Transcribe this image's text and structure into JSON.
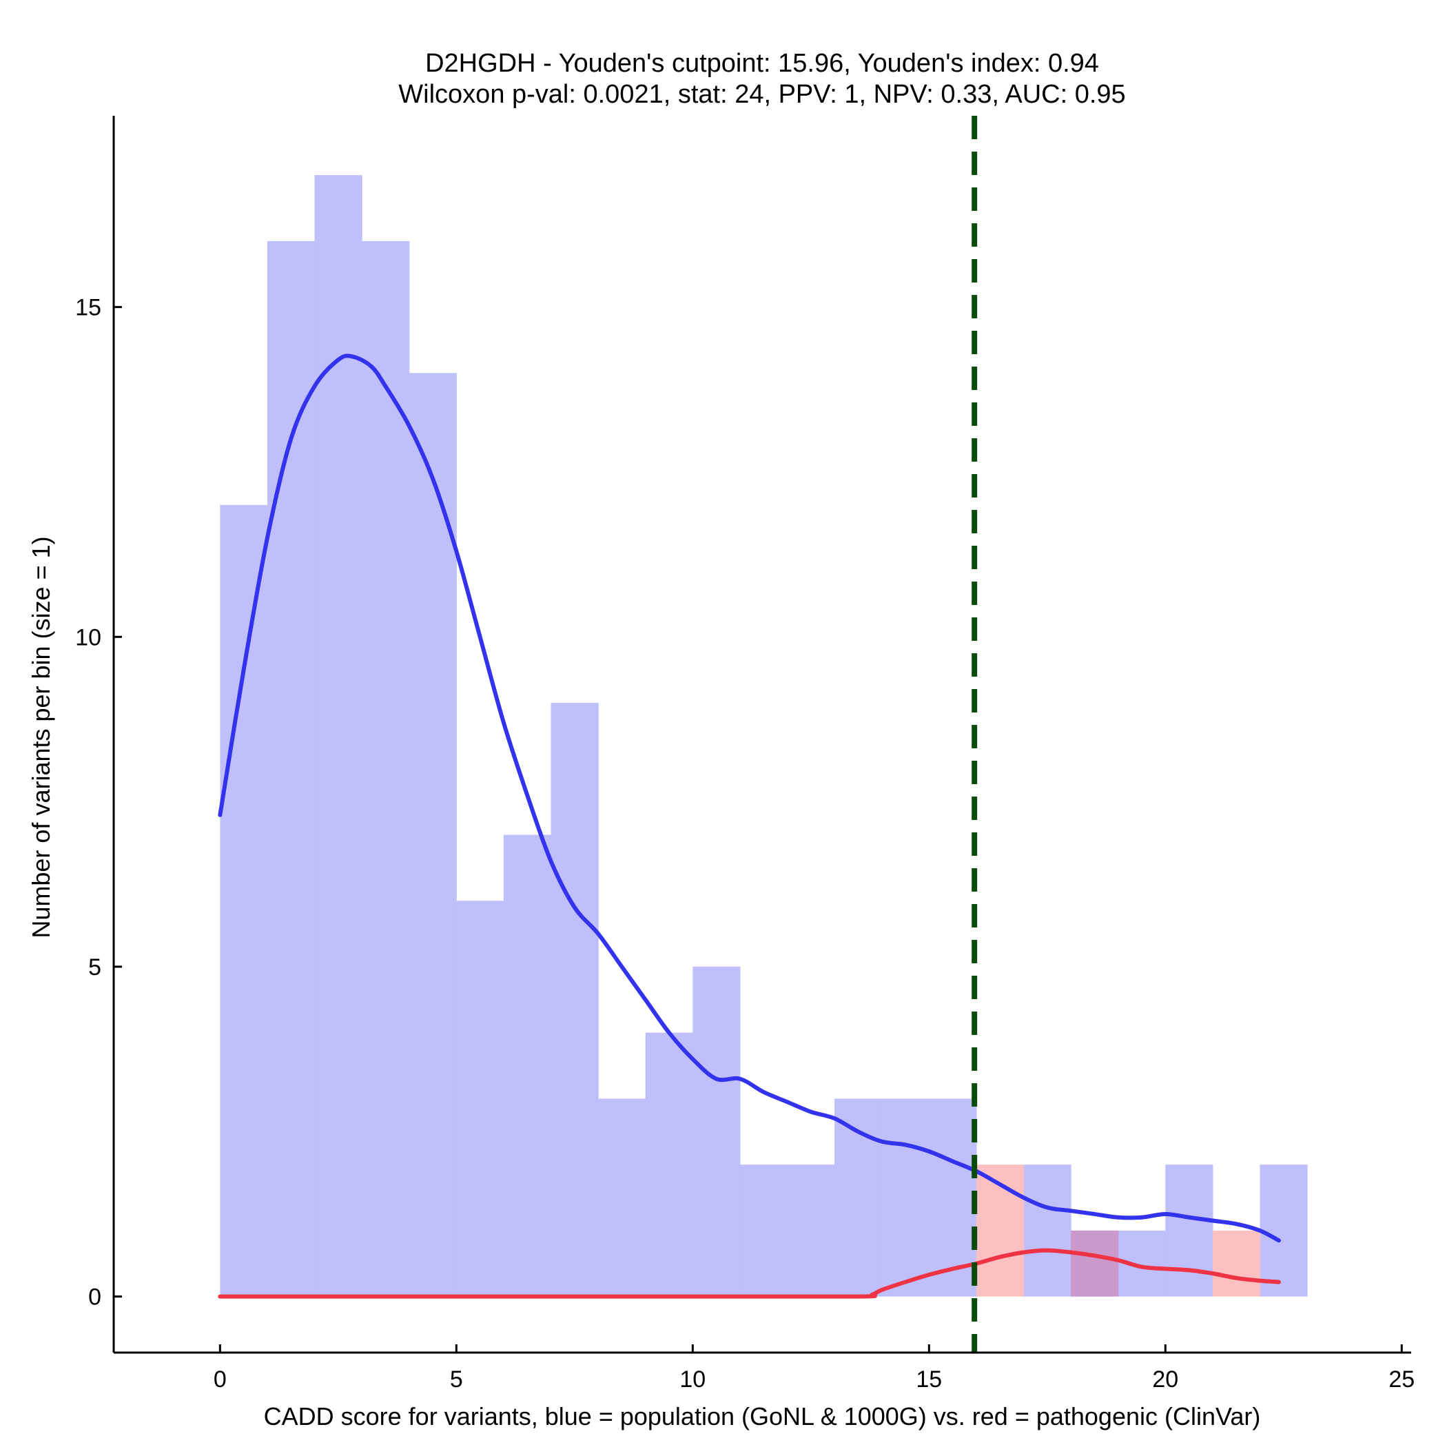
{
  "chart_data": {
    "type": "histogram",
    "title_line1": "D2HGDH - Youden's cutpoint: 15.96, Youden's index: 0.94",
    "title_line2": "Wilcoxon p-val: 0.0021, stat: 24, PPV: 1, NPV: 0.33, AUC: 0.95",
    "xlabel": "CADD score for variants, blue = population (GoNL & 1000G) vs. red = pathogenic (ClinVar)",
    "ylabel": "Number of variants per bin (size = 1)",
    "xlim": [
      -2.25,
      25.2
    ],
    "ylim": [
      -0.85,
      17.9
    ],
    "x_ticks": [
      0,
      5,
      10,
      15,
      20,
      25
    ],
    "x_tick_labels": [
      "0",
      "5",
      "10",
      "15",
      "20",
      "25"
    ],
    "y_ticks": [
      0,
      5,
      10,
      15
    ],
    "y_tick_labels": [
      "0",
      "5",
      "10",
      "15"
    ],
    "bin_size": 1,
    "cutpoint": 15.96,
    "colors": {
      "population_fill": "#bfbffc",
      "pathogenic_fill": "#fcc0c0",
      "overlap_fill": "#cc99cc",
      "population_line": "#3333ee",
      "pathogenic_line": "#ee3344",
      "cutpoint_line": "#0a4a0a"
    },
    "series": [
      {
        "name": "population (GoNL & 1000G)",
        "bin_starts": [
          0,
          1,
          2,
          3,
          4,
          5,
          6,
          7,
          8,
          9,
          10,
          11,
          12,
          13,
          14,
          15,
          16,
          17,
          18,
          19,
          20,
          21,
          22
        ],
        "values": [
          12,
          16,
          17,
          16,
          14,
          6,
          7,
          9,
          3,
          4,
          5,
          2,
          2,
          3,
          3,
          3,
          0,
          2,
          1,
          1,
          2,
          0,
          2
        ]
      },
      {
        "name": "pathogenic (ClinVar)",
        "bin_starts": [
          16,
          18,
          21
        ],
        "values": [
          2,
          1,
          1
        ]
      }
    ],
    "density_lines": [
      {
        "name": "population",
        "x": [
          0,
          0.5,
          1,
          1.5,
          2,
          2.5,
          2.8,
          3.2,
          3.5,
          4,
          4.5,
          5,
          5.5,
          6,
          6.5,
          7,
          7.5,
          8,
          8.5,
          9,
          9.5,
          10,
          10.5,
          11,
          11.5,
          12,
          12.5,
          13,
          13.5,
          14,
          14.5,
          15,
          15.5,
          16,
          16.5,
          17,
          17.5,
          18,
          18.5,
          19,
          19.5,
          20,
          20.5,
          21,
          21.5,
          22,
          22.4
        ],
        "y": [
          7.3,
          9.5,
          11.5,
          13.0,
          13.8,
          14.2,
          14.25,
          14.1,
          13.8,
          13.2,
          12.4,
          11.3,
          10.0,
          8.7,
          7.6,
          6.6,
          5.9,
          5.5,
          5.0,
          4.5,
          4.0,
          3.6,
          3.3,
          3.3,
          3.1,
          2.95,
          2.8,
          2.7,
          2.5,
          2.35,
          2.3,
          2.2,
          2.05,
          1.9,
          1.7,
          1.5,
          1.35,
          1.3,
          1.25,
          1.2,
          1.2,
          1.25,
          1.2,
          1.15,
          1.1,
          1.0,
          0.85
        ]
      },
      {
        "name": "pathogenic",
        "x": [
          0,
          5,
          10,
          13.5,
          13.8,
          14,
          14.5,
          15,
          15.5,
          16,
          16.5,
          17,
          17.5,
          18,
          18.5,
          19,
          19.5,
          20,
          20.5,
          21,
          21.5,
          22,
          22.4
        ],
        "y": [
          0,
          0,
          0,
          0,
          0.03,
          0.1,
          0.22,
          0.33,
          0.42,
          0.5,
          0.6,
          0.67,
          0.7,
          0.67,
          0.62,
          0.55,
          0.45,
          0.42,
          0.4,
          0.35,
          0.28,
          0.24,
          0.22
        ]
      }
    ]
  }
}
